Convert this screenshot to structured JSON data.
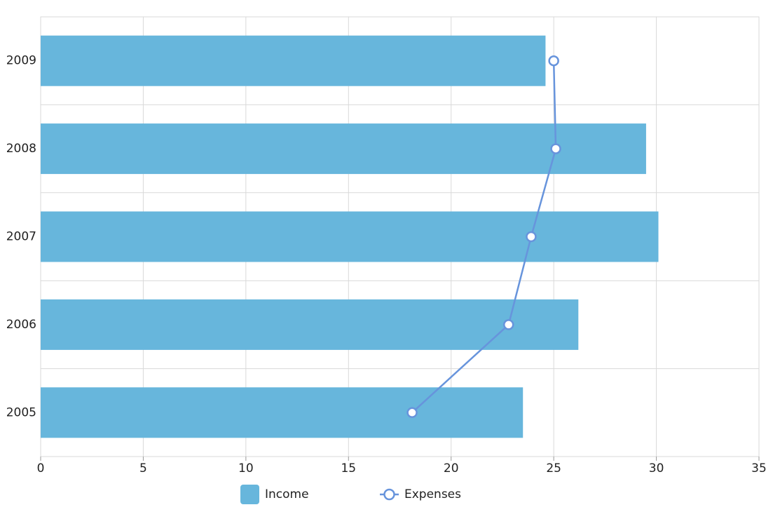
{
  "chart_data": {
    "type": "bar",
    "orientation": "horizontal",
    "categories": [
      "2005",
      "2006",
      "2007",
      "2008",
      "2009"
    ],
    "series": [
      {
        "name": "Income",
        "type": "bar",
        "color": "#67b6dc",
        "values": [
          23.5,
          26.2,
          30.1,
          29.5,
          24.6
        ]
      },
      {
        "name": "Expenses",
        "type": "line",
        "color": "#6794dc",
        "values": [
          18.1,
          22.8,
          23.9,
          25.1,
          25.0
        ]
      }
    ],
    "xlim": [
      0,
      35
    ],
    "xticks": [
      0,
      5,
      10,
      15,
      20,
      25,
      30,
      35
    ],
    "grid": true,
    "legend": "bottom"
  }
}
